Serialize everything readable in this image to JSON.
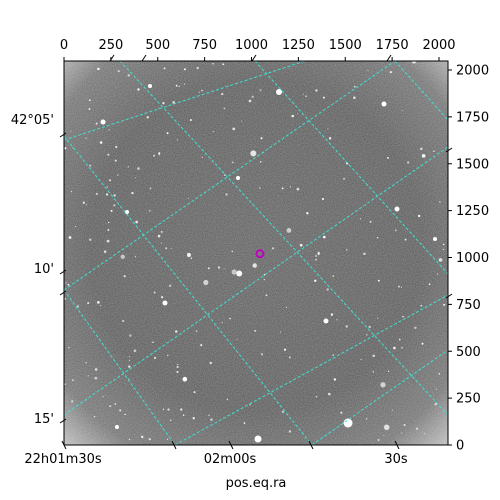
{
  "chart_data": {
    "type": "scatter",
    "title": "",
    "xlabel": "pos.eq.ra",
    "ylabel": "",
    "pixel_x_axis": {
      "ticks": [
        0,
        250,
        500,
        750,
        1000,
        1250,
        1500,
        1750,
        2000
      ],
      "xlim": [
        0,
        2048
      ]
    },
    "pixel_y_axis": {
      "ticks": [
        0,
        250,
        500,
        750,
        1000,
        1250,
        1500,
        1750,
        2000
      ],
      "ylim": [
        0,
        2048
      ]
    },
    "ra_tick_labels": [
      "22h01m30s",
      "02m00s",
      "30s"
    ],
    "dec_tick_labels": [
      "42°05'",
      "10'",
      "15'"
    ],
    "grid": true,
    "grid_color": "#40e0d0",
    "background": "grayscale star field",
    "marker": {
      "x": 1045,
      "y": 1020,
      "color": "#c000c0",
      "shape": "circle"
    }
  }
}
